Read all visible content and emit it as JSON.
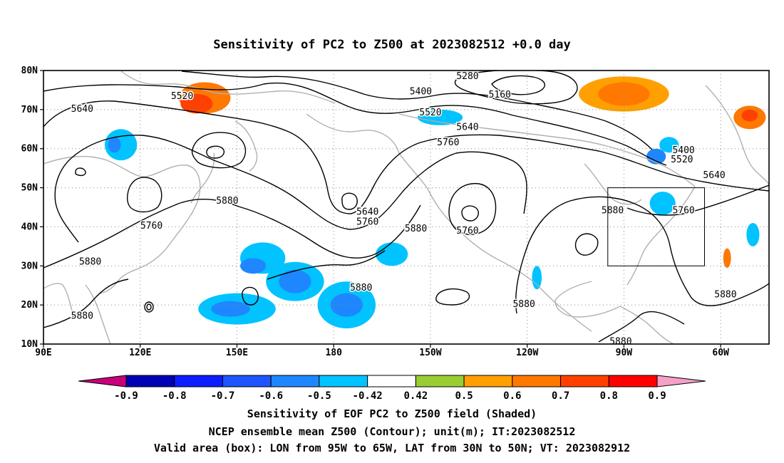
{
  "title": "Sensitivity of PC2 to Z500 at 2023082512 +0.0 day",
  "captions": {
    "line1": "Sensitivity of EOF PC2 to Z500 field (Shaded)",
    "line2": "NCEP ensemble mean Z500 (Contour); unit(m); IT:2023082512",
    "line3": "Valid area (box): LON from 95W to 65W, LAT from 30N to 50N; VT: 2023082912"
  },
  "map": {
    "lon_range_deg_east": [
      90,
      315
    ],
    "lat_range": [
      10,
      80
    ],
    "lon_tick_values": [
      90,
      120,
      150,
      180,
      210,
      240,
      270,
      300
    ],
    "lon_tick_labels": [
      "90E",
      "120E",
      "150E",
      "180",
      "150W",
      "120W",
      "90W",
      "60W"
    ],
    "lat_tick_values": [
      10,
      20,
      30,
      40,
      50,
      60,
      70,
      80
    ],
    "lat_tick_labels": [
      "10N",
      "20N",
      "30N",
      "40N",
      "50N",
      "60N",
      "70N",
      "80N"
    ],
    "grid_style": "dotted",
    "valid_box": {
      "lon_west": 265,
      "lon_east": 295,
      "lat_south": 30,
      "lat_north": 50
    }
  },
  "colorbar": {
    "tick_labels": [
      "-0.9",
      "-0.8",
      "-0.7",
      "-0.6",
      "-0.5",
      "-0.42",
      "0.42",
      "0.5",
      "0.6",
      "0.7",
      "0.8",
      "0.9"
    ],
    "low_extend_color": "#c8007a",
    "high_extend_color": "#f5a0c8",
    "colors": [
      "#0000b4",
      "#0a1eff",
      "#1e55ff",
      "#1e87ff",
      "#00c3ff",
      "#ffffff",
      "#9acd32",
      "#ffa000",
      "#ff7800",
      "#ff4000",
      "#ff0000"
    ]
  },
  "contours": [
    {
      "label": "5280",
      "label_lon": 221.5,
      "label_lat": 78.5
    },
    {
      "label": "5160",
      "label_lon": 231.5,
      "label_lat": 73.8
    },
    {
      "label": "5400",
      "label_lon": 207,
      "label_lat": 74.6
    },
    {
      "label": "5520",
      "label_lon": 133,
      "label_lat": 73.4
    },
    {
      "label": "5520",
      "label_lon": 210,
      "label_lat": 69.2
    },
    {
      "label": "5640",
      "label_lon": 102,
      "label_lat": 70.2
    },
    {
      "label": "5640",
      "label_lon": 221.5,
      "label_lat": 65.5
    },
    {
      "label": "5760",
      "label_lon": 215.5,
      "label_lat": 61.6
    },
    {
      "label": "5400",
      "label_lon": 288.5,
      "label_lat": 59.6
    },
    {
      "label": "5520",
      "label_lon": 288,
      "label_lat": 57.2
    },
    {
      "label": "5640",
      "label_lon": 298,
      "label_lat": 53.2
    },
    {
      "label": "5640",
      "label_lon": 190.5,
      "label_lat": 43.8
    },
    {
      "label": "5760",
      "label_lon": 190.5,
      "label_lat": 41.3
    },
    {
      "label": "5880",
      "label_lon": 147,
      "label_lat": 46.6
    },
    {
      "label": "5760",
      "label_lon": 123.5,
      "label_lat": 40.3
    },
    {
      "label": "5880",
      "label_lon": 205.5,
      "label_lat": 39.5
    },
    {
      "label": "5760",
      "label_lon": 221.5,
      "label_lat": 39.0
    },
    {
      "label": "5880",
      "label_lon": 266.5,
      "label_lat": 44.2
    },
    {
      "label": "5760",
      "label_lon": 288.5,
      "label_lat": 44.2
    },
    {
      "label": "5880",
      "label_lon": 104.5,
      "label_lat": 31.1
    },
    {
      "label": "5880",
      "label_lon": 188.5,
      "label_lat": 24.4
    },
    {
      "label": "5880",
      "label_lon": 239,
      "label_lat": 20.2
    },
    {
      "label": "5880",
      "label_lon": 301.5,
      "label_lat": 22.7
    },
    {
      "label": "5880",
      "label_lon": 102,
      "label_lat": 17.2
    },
    {
      "label": "5880",
      "label_lon": 269,
      "label_lat": 10.6
    }
  ],
  "sensitivity_patches": [
    {
      "lon": 140,
      "lat": 73,
      "rlon": 8,
      "rlat": 4,
      "level": "0.6"
    },
    {
      "lon": 137.5,
      "lat": 71.5,
      "rlon": 5,
      "rlat": 2.5,
      "level": "0.7"
    },
    {
      "lon": 270,
      "lat": 74,
      "rlon": 14,
      "rlat": 4.5,
      "level": "0.5"
    },
    {
      "lon": 270,
      "lat": 74,
      "rlon": 8,
      "rlat": 3,
      "level": "0.6"
    },
    {
      "lon": 309,
      "lat": 68,
      "rlon": 5,
      "rlat": 3,
      "level": "0.6"
    },
    {
      "lon": 309,
      "lat": 68.5,
      "rlon": 2.5,
      "rlat": 1.5,
      "level": "0.7"
    },
    {
      "lon": 302,
      "lat": 32,
      "rlon": 1.2,
      "rlat": 2.5,
      "level": "0.6"
    },
    {
      "lon": 114,
      "lat": 61,
      "rlon": 5,
      "rlat": 4,
      "level": "-0.5"
    },
    {
      "lon": 112,
      "lat": 61,
      "rlon": 2,
      "rlat": 2,
      "level": "-0.6"
    },
    {
      "lon": 158,
      "lat": 32,
      "rlon": 7,
      "rlat": 4,
      "level": "-0.5"
    },
    {
      "lon": 155,
      "lat": 30,
      "rlon": 4,
      "rlat": 2,
      "level": "-0.6"
    },
    {
      "lon": 168,
      "lat": 26,
      "rlon": 9,
      "rlat": 5,
      "level": "-0.5"
    },
    {
      "lon": 168,
      "lat": 26,
      "rlon": 5,
      "rlat": 3,
      "level": "-0.6"
    },
    {
      "lon": 150,
      "lat": 19,
      "rlon": 12,
      "rlat": 4,
      "level": "-0.5"
    },
    {
      "lon": 148,
      "lat": 19,
      "rlon": 6,
      "rlat": 2,
      "level": "-0.6"
    },
    {
      "lon": 184,
      "lat": 20,
      "rlon": 9,
      "rlat": 6,
      "level": "-0.5"
    },
    {
      "lon": 184,
      "lat": 20,
      "rlon": 5,
      "rlat": 3,
      "level": "-0.6"
    },
    {
      "lon": 198,
      "lat": 33,
      "rlon": 5,
      "rlat": 3,
      "level": "-0.5"
    },
    {
      "lon": 213,
      "lat": 68,
      "rlon": 7,
      "rlat": 2,
      "level": "-0.5"
    },
    {
      "lon": 284,
      "lat": 61,
      "rlon": 3,
      "rlat": 2,
      "level": "-0.5"
    },
    {
      "lon": 280,
      "lat": 58,
      "rlon": 3,
      "rlat": 2,
      "level": "-0.6"
    },
    {
      "lon": 282,
      "lat": 46,
      "rlon": 4,
      "rlat": 3,
      "level": "-0.5"
    },
    {
      "lon": 243,
      "lat": 27,
      "rlon": 1.5,
      "rlat": 3,
      "level": "-0.5"
    },
    {
      "lon": 310,
      "lat": 38,
      "rlon": 2,
      "rlat": 3,
      "level": "-0.5"
    }
  ]
}
